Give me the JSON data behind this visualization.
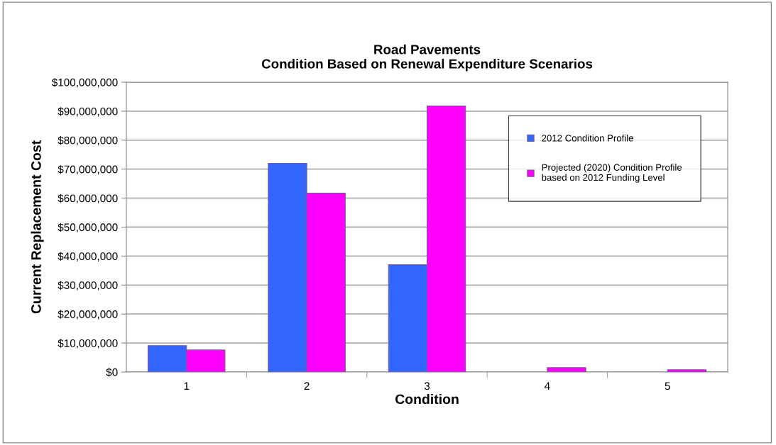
{
  "chart_data": {
    "type": "bar",
    "title": "Road Pavements\nCondition Based on Renewal Expenditure Scenarios",
    "xlabel": "Condition",
    "ylabel": "Current Replacement Cost",
    "categories": [
      "1",
      "2",
      "3",
      "4",
      "5"
    ],
    "series": [
      {
        "name": "2012 Condition Profile",
        "color": "#3366ff",
        "values": [
          9100000,
          72000000,
          37000000,
          null,
          null
        ]
      },
      {
        "name": "Projected (2020) Condition Profile based on 2012 Funding Level",
        "color": "#ff00ff",
        "values": [
          7600000,
          61700000,
          91800000,
          1500000,
          800000
        ]
      }
    ],
    "ylim": [
      0,
      100000000
    ],
    "yticks": [
      {
        "value": 0,
        "label": "$0"
      },
      {
        "value": 10000000,
        "label": "$10,000,000"
      },
      {
        "value": 20000000,
        "label": "$20,000,000"
      },
      {
        "value": 30000000,
        "label": "$30,000,000"
      },
      {
        "value": 40000000,
        "label": "$40,000,000"
      },
      {
        "value": 50000000,
        "label": "$50,000,000"
      },
      {
        "value": 60000000,
        "label": "$60,000,000"
      },
      {
        "value": 70000000,
        "label": "$70,000,000"
      },
      {
        "value": 80000000,
        "label": "$80,000,000"
      },
      {
        "value": 90000000,
        "label": "$90,000,000"
      },
      {
        "value": 100000000,
        "label": "$100,000,000"
      }
    ],
    "grid": "y",
    "legend": "top right"
  }
}
